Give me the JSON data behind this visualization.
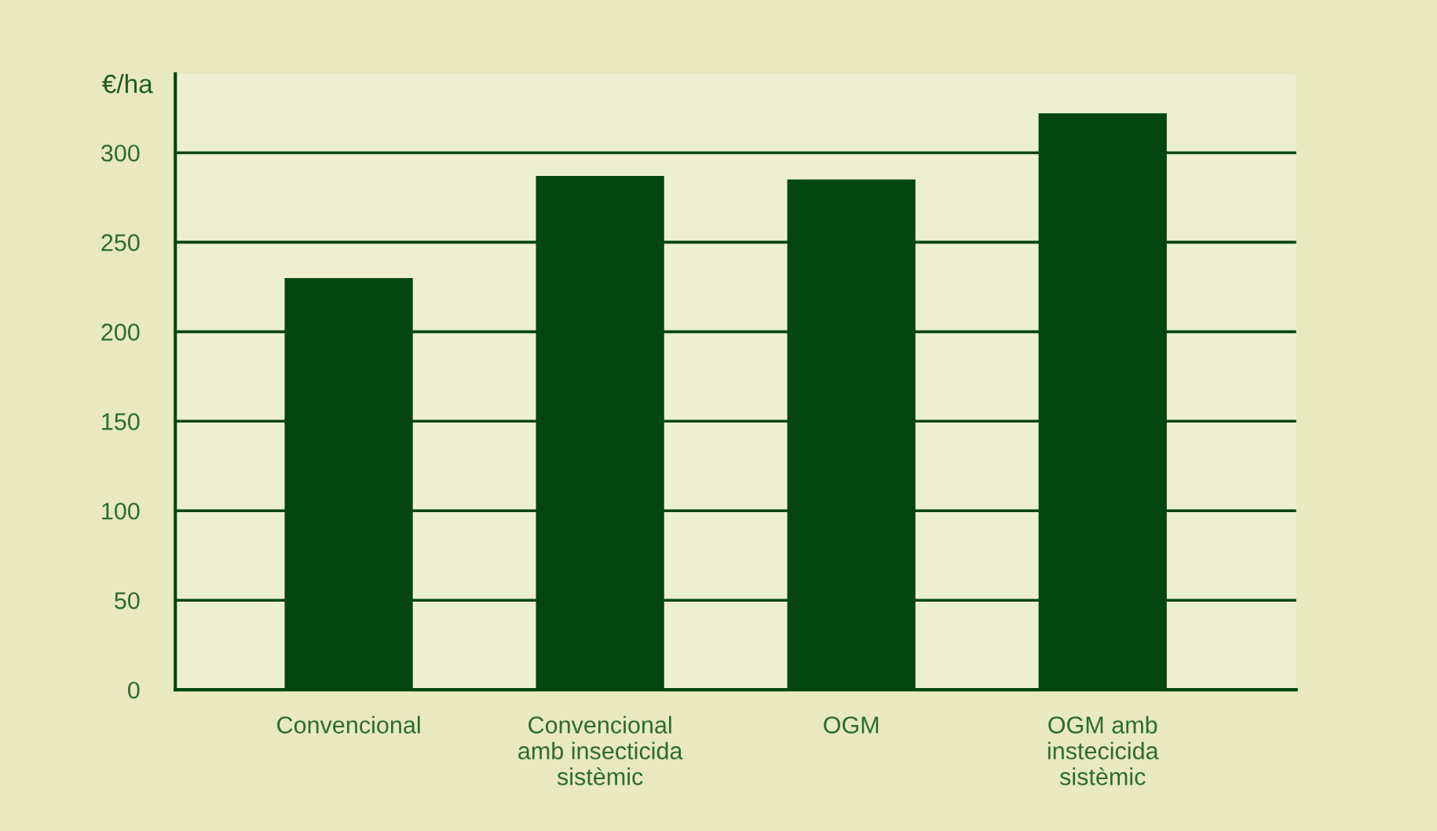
{
  "chart_data": {
    "type": "bar",
    "ylabel": "€/ha",
    "categories": [
      "Convencional",
      "Convencional\namb insecticida\nsistèmic",
      "OGM",
      "OGM amb\ninstecicida\nsistèmic"
    ],
    "values": [
      230,
      287,
      285,
      322
    ],
    "color": "#03470f",
    "ylim": [
      0,
      344
    ],
    "yticks": [
      0,
      50,
      100,
      150,
      200,
      250,
      300
    ],
    "grid": "y"
  }
}
